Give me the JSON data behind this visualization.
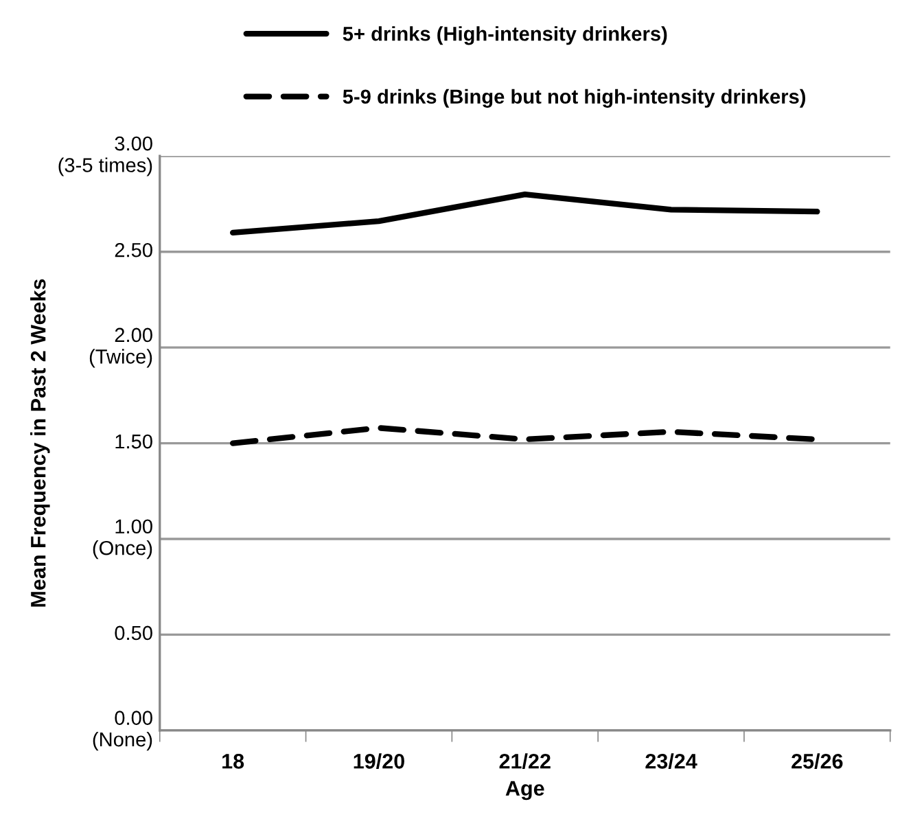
{
  "chart_data": {
    "type": "line",
    "xlabel": "Age",
    "ylabel": "Mean Frequency in Past 2 Weeks",
    "categories": [
      "18",
      "19/20",
      "21/22",
      "23/24",
      "25/26"
    ],
    "series": [
      {
        "name": "5+ drinks (High-intensity drinkers)",
        "color": "#000000",
        "line_style": "solid",
        "values": [
          2.6,
          2.66,
          2.8,
          2.72,
          2.71
        ]
      },
      {
        "name": "5-9 drinks (Binge but not high-intensity drinkers)",
        "color": "#000000",
        "line_style": "dashed",
        "values": [
          1.5,
          1.58,
          1.52,
          1.56,
          1.52
        ]
      }
    ],
    "ylim": [
      0,
      3
    ],
    "yticks": [
      {
        "value": 0,
        "label": "0.00\n(None)"
      },
      {
        "value": 0.5,
        "label": "0.50"
      },
      {
        "value": 1,
        "label": "1.00\n(Once)"
      },
      {
        "value": 1.5,
        "label": "1.50"
      },
      {
        "value": 2,
        "label": "2.00\n(Twice)"
      },
      {
        "value": 2.5,
        "label": "2.50"
      },
      {
        "value": 3,
        "label": "3.00\n(3-5 times)"
      }
    ],
    "grid": "y",
    "legend": "top",
    "marker": "none"
  }
}
